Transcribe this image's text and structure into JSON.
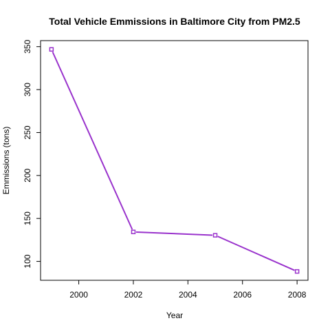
{
  "chart_data": {
    "type": "line",
    "title": "Total Vehicle Emmissions in Baltimore City from PM2.5",
    "xlabel": "Year",
    "ylabel": "Emmissions (tons)",
    "x": [
      1999,
      2002,
      2005,
      2008
    ],
    "series": [
      {
        "values": [
          346.8,
          134.3,
          130.4,
          88.3
        ],
        "color": "#9932cc"
      }
    ],
    "xlim": [
      1998.6,
      2008.4
    ],
    "ylim": [
      78,
      357
    ],
    "xticks": [
      2000,
      2002,
      2004,
      2006,
      2008
    ],
    "yticks": [
      100,
      150,
      200,
      250,
      300,
      350
    ],
    "xtick_labels": [
      "2000",
      "2002",
      "2004",
      "2006",
      "2008"
    ],
    "ytick_labels": [
      "100",
      "150",
      "200",
      "250",
      "300",
      "350"
    ],
    "grid": false,
    "legend": "none",
    "line_color": "#9932cc",
    "marker_color": "#9932cc"
  }
}
